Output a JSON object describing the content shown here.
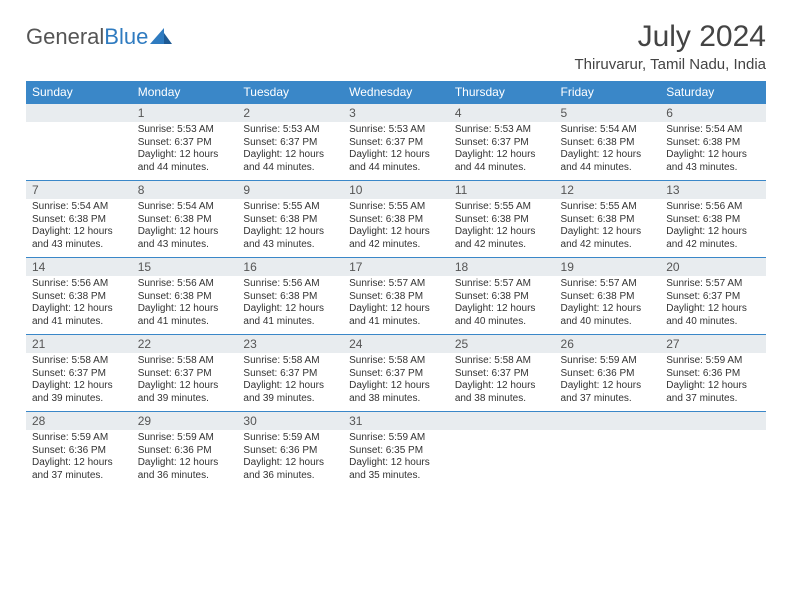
{
  "logo": {
    "part1": "General",
    "part2": "Blue"
  },
  "title": "July 2024",
  "location": "Thiruvarur, Tamil Nadu, India",
  "colors": {
    "header_bg": "#3a87c8",
    "header_text": "#ffffff",
    "daynum_bg": "#e8ecef",
    "rule": "#3a87c8",
    "logo_blue": "#2f7bc0"
  },
  "weekdays": [
    "Sunday",
    "Monday",
    "Tuesday",
    "Wednesday",
    "Thursday",
    "Friday",
    "Saturday"
  ],
  "weeks": [
    [
      {
        "n": "",
        "lines": [
          "",
          "",
          "",
          ""
        ]
      },
      {
        "n": "1",
        "lines": [
          "Sunrise: 5:53 AM",
          "Sunset: 6:37 PM",
          "Daylight: 12 hours",
          "and 44 minutes."
        ]
      },
      {
        "n": "2",
        "lines": [
          "Sunrise: 5:53 AM",
          "Sunset: 6:37 PM",
          "Daylight: 12 hours",
          "and 44 minutes."
        ]
      },
      {
        "n": "3",
        "lines": [
          "Sunrise: 5:53 AM",
          "Sunset: 6:37 PM",
          "Daylight: 12 hours",
          "and 44 minutes."
        ]
      },
      {
        "n": "4",
        "lines": [
          "Sunrise: 5:53 AM",
          "Sunset: 6:37 PM",
          "Daylight: 12 hours",
          "and 44 minutes."
        ]
      },
      {
        "n": "5",
        "lines": [
          "Sunrise: 5:54 AM",
          "Sunset: 6:38 PM",
          "Daylight: 12 hours",
          "and 44 minutes."
        ]
      },
      {
        "n": "6",
        "lines": [
          "Sunrise: 5:54 AM",
          "Sunset: 6:38 PM",
          "Daylight: 12 hours",
          "and 43 minutes."
        ]
      }
    ],
    [
      {
        "n": "7",
        "lines": [
          "Sunrise: 5:54 AM",
          "Sunset: 6:38 PM",
          "Daylight: 12 hours",
          "and 43 minutes."
        ]
      },
      {
        "n": "8",
        "lines": [
          "Sunrise: 5:54 AM",
          "Sunset: 6:38 PM",
          "Daylight: 12 hours",
          "and 43 minutes."
        ]
      },
      {
        "n": "9",
        "lines": [
          "Sunrise: 5:55 AM",
          "Sunset: 6:38 PM",
          "Daylight: 12 hours",
          "and 43 minutes."
        ]
      },
      {
        "n": "10",
        "lines": [
          "Sunrise: 5:55 AM",
          "Sunset: 6:38 PM",
          "Daylight: 12 hours",
          "and 42 minutes."
        ]
      },
      {
        "n": "11",
        "lines": [
          "Sunrise: 5:55 AM",
          "Sunset: 6:38 PM",
          "Daylight: 12 hours",
          "and 42 minutes."
        ]
      },
      {
        "n": "12",
        "lines": [
          "Sunrise: 5:55 AM",
          "Sunset: 6:38 PM",
          "Daylight: 12 hours",
          "and 42 minutes."
        ]
      },
      {
        "n": "13",
        "lines": [
          "Sunrise: 5:56 AM",
          "Sunset: 6:38 PM",
          "Daylight: 12 hours",
          "and 42 minutes."
        ]
      }
    ],
    [
      {
        "n": "14",
        "lines": [
          "Sunrise: 5:56 AM",
          "Sunset: 6:38 PM",
          "Daylight: 12 hours",
          "and 41 minutes."
        ]
      },
      {
        "n": "15",
        "lines": [
          "Sunrise: 5:56 AM",
          "Sunset: 6:38 PM",
          "Daylight: 12 hours",
          "and 41 minutes."
        ]
      },
      {
        "n": "16",
        "lines": [
          "Sunrise: 5:56 AM",
          "Sunset: 6:38 PM",
          "Daylight: 12 hours",
          "and 41 minutes."
        ]
      },
      {
        "n": "17",
        "lines": [
          "Sunrise: 5:57 AM",
          "Sunset: 6:38 PM",
          "Daylight: 12 hours",
          "and 41 minutes."
        ]
      },
      {
        "n": "18",
        "lines": [
          "Sunrise: 5:57 AM",
          "Sunset: 6:38 PM",
          "Daylight: 12 hours",
          "and 40 minutes."
        ]
      },
      {
        "n": "19",
        "lines": [
          "Sunrise: 5:57 AM",
          "Sunset: 6:38 PM",
          "Daylight: 12 hours",
          "and 40 minutes."
        ]
      },
      {
        "n": "20",
        "lines": [
          "Sunrise: 5:57 AM",
          "Sunset: 6:37 PM",
          "Daylight: 12 hours",
          "and 40 minutes."
        ]
      }
    ],
    [
      {
        "n": "21",
        "lines": [
          "Sunrise: 5:58 AM",
          "Sunset: 6:37 PM",
          "Daylight: 12 hours",
          "and 39 minutes."
        ]
      },
      {
        "n": "22",
        "lines": [
          "Sunrise: 5:58 AM",
          "Sunset: 6:37 PM",
          "Daylight: 12 hours",
          "and 39 minutes."
        ]
      },
      {
        "n": "23",
        "lines": [
          "Sunrise: 5:58 AM",
          "Sunset: 6:37 PM",
          "Daylight: 12 hours",
          "and 39 minutes."
        ]
      },
      {
        "n": "24",
        "lines": [
          "Sunrise: 5:58 AM",
          "Sunset: 6:37 PM",
          "Daylight: 12 hours",
          "and 38 minutes."
        ]
      },
      {
        "n": "25",
        "lines": [
          "Sunrise: 5:58 AM",
          "Sunset: 6:37 PM",
          "Daylight: 12 hours",
          "and 38 minutes."
        ]
      },
      {
        "n": "26",
        "lines": [
          "Sunrise: 5:59 AM",
          "Sunset: 6:36 PM",
          "Daylight: 12 hours",
          "and 37 minutes."
        ]
      },
      {
        "n": "27",
        "lines": [
          "Sunrise: 5:59 AM",
          "Sunset: 6:36 PM",
          "Daylight: 12 hours",
          "and 37 minutes."
        ]
      }
    ],
    [
      {
        "n": "28",
        "lines": [
          "Sunrise: 5:59 AM",
          "Sunset: 6:36 PM",
          "Daylight: 12 hours",
          "and 37 minutes."
        ]
      },
      {
        "n": "29",
        "lines": [
          "Sunrise: 5:59 AM",
          "Sunset: 6:36 PM",
          "Daylight: 12 hours",
          "and 36 minutes."
        ]
      },
      {
        "n": "30",
        "lines": [
          "Sunrise: 5:59 AM",
          "Sunset: 6:36 PM",
          "Daylight: 12 hours",
          "and 36 minutes."
        ]
      },
      {
        "n": "31",
        "lines": [
          "Sunrise: 5:59 AM",
          "Sunset: 6:35 PM",
          "Daylight: 12 hours",
          "and 35 minutes."
        ]
      },
      {
        "n": "",
        "lines": [
          "",
          "",
          "",
          ""
        ]
      },
      {
        "n": "",
        "lines": [
          "",
          "",
          "",
          ""
        ]
      },
      {
        "n": "",
        "lines": [
          "",
          "",
          "",
          ""
        ]
      }
    ]
  ]
}
